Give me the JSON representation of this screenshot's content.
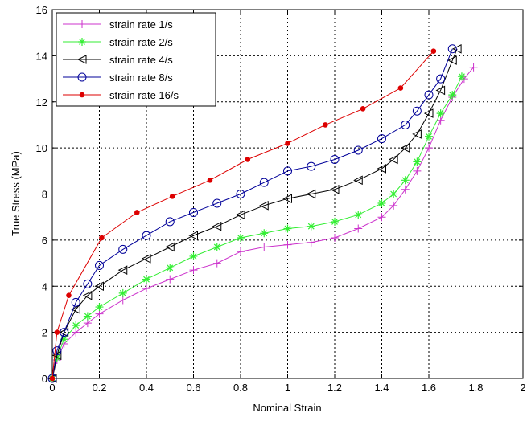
{
  "chart_data": {
    "type": "line",
    "title": "",
    "xlabel": "Nominal Strain",
    "ylabel": "True Stress (MPa)",
    "xlim": [
      0,
      2
    ],
    "ylim": [
      0,
      16
    ],
    "x_ticks": [
      "0",
      "0.2",
      "0.4",
      "0.6",
      "0.8",
      "1",
      "1.2",
      "1.4",
      "1.6",
      "1.8",
      "2"
    ],
    "y_ticks": [
      "0",
      "2",
      "4",
      "6",
      "8",
      "10",
      "12",
      "14",
      "16"
    ],
    "grid": true,
    "legend_position": "top-left",
    "series": [
      {
        "name": "strain rate 1/s",
        "color": "#cc33cc",
        "marker": "plus",
        "points": [
          [
            0,
            0
          ],
          [
            0.02,
            0.8
          ],
          [
            0.05,
            1.5
          ],
          [
            0.1,
            2.0
          ],
          [
            0.15,
            2.4
          ],
          [
            0.2,
            2.8
          ],
          [
            0.3,
            3.4
          ],
          [
            0.4,
            3.9
          ],
          [
            0.5,
            4.3
          ],
          [
            0.6,
            4.7
          ],
          [
            0.7,
            5.0
          ],
          [
            0.8,
            5.5
          ],
          [
            0.9,
            5.7
          ],
          [
            1.0,
            5.8
          ],
          [
            1.1,
            5.9
          ],
          [
            1.2,
            6.1
          ],
          [
            1.3,
            6.5
          ],
          [
            1.4,
            7.0
          ],
          [
            1.45,
            7.5
          ],
          [
            1.5,
            8.2
          ],
          [
            1.55,
            9.0
          ],
          [
            1.6,
            10.0
          ],
          [
            1.65,
            11.2
          ],
          [
            1.7,
            12.2
          ],
          [
            1.75,
            13.0
          ],
          [
            1.79,
            13.5
          ]
        ]
      },
      {
        "name": "strain rate 2/s",
        "color": "#33ee33",
        "marker": "star",
        "points": [
          [
            0,
            0
          ],
          [
            0.02,
            0.9
          ],
          [
            0.05,
            1.7
          ],
          [
            0.1,
            2.3
          ],
          [
            0.15,
            2.7
          ],
          [
            0.2,
            3.1
          ],
          [
            0.3,
            3.7
          ],
          [
            0.4,
            4.3
          ],
          [
            0.5,
            4.8
          ],
          [
            0.6,
            5.3
          ],
          [
            0.7,
            5.7
          ],
          [
            0.8,
            6.1
          ],
          [
            0.9,
            6.3
          ],
          [
            1.0,
            6.5
          ],
          [
            1.1,
            6.6
          ],
          [
            1.2,
            6.8
          ],
          [
            1.3,
            7.1
          ],
          [
            1.4,
            7.6
          ],
          [
            1.45,
            8.0
          ],
          [
            1.5,
            8.6
          ],
          [
            1.55,
            9.4
          ],
          [
            1.6,
            10.5
          ],
          [
            1.65,
            11.5
          ],
          [
            1.7,
            12.3
          ],
          [
            1.74,
            13.1
          ]
        ]
      },
      {
        "name": "strain rate 4/s",
        "color": "#000000",
        "marker": "triangle-left",
        "points": [
          [
            0,
            0
          ],
          [
            0.02,
            1.0
          ],
          [
            0.05,
            2.0
          ],
          [
            0.1,
            3.0
          ],
          [
            0.15,
            3.6
          ],
          [
            0.2,
            4.0
          ],
          [
            0.3,
            4.7
          ],
          [
            0.4,
            5.2
          ],
          [
            0.5,
            5.7
          ],
          [
            0.6,
            6.2
          ],
          [
            0.7,
            6.6
          ],
          [
            0.8,
            7.1
          ],
          [
            0.9,
            7.5
          ],
          [
            1.0,
            7.8
          ],
          [
            1.1,
            8.0
          ],
          [
            1.2,
            8.2
          ],
          [
            1.3,
            8.6
          ],
          [
            1.4,
            9.1
          ],
          [
            1.45,
            9.5
          ],
          [
            1.5,
            10.0
          ],
          [
            1.55,
            10.6
          ],
          [
            1.6,
            11.5
          ],
          [
            1.65,
            12.5
          ],
          [
            1.7,
            13.8
          ],
          [
            1.72,
            14.3
          ]
        ]
      },
      {
        "name": "strain rate 8/s",
        "color": "#000099",
        "marker": "circle",
        "points": [
          [
            0,
            0
          ],
          [
            0.02,
            1.2
          ],
          [
            0.05,
            2.0
          ],
          [
            0.1,
            3.3
          ],
          [
            0.15,
            4.1
          ],
          [
            0.2,
            4.9
          ],
          [
            0.3,
            5.6
          ],
          [
            0.4,
            6.2
          ],
          [
            0.5,
            6.8
          ],
          [
            0.6,
            7.2
          ],
          [
            0.7,
            7.6
          ],
          [
            0.8,
            8.0
          ],
          [
            0.9,
            8.5
          ],
          [
            1.0,
            9.0
          ],
          [
            1.1,
            9.2
          ],
          [
            1.2,
            9.5
          ],
          [
            1.3,
            9.9
          ],
          [
            1.4,
            10.4
          ],
          [
            1.5,
            11.0
          ],
          [
            1.55,
            11.6
          ],
          [
            1.6,
            12.3
          ],
          [
            1.65,
            13.0
          ],
          [
            1.7,
            14.3
          ]
        ]
      },
      {
        "name": "strain rate 16/s",
        "color": "#dd0000",
        "marker": "dot",
        "points": [
          [
            0,
            0
          ],
          [
            0.02,
            2.0
          ],
          [
            0.07,
            3.6
          ],
          [
            0.21,
            6.1
          ],
          [
            0.36,
            7.2
          ],
          [
            0.51,
            7.9
          ],
          [
            0.67,
            8.6
          ],
          [
            0.83,
            9.5
          ],
          [
            1.0,
            10.2
          ],
          [
            1.16,
            11.0
          ],
          [
            1.32,
            11.7
          ],
          [
            1.48,
            12.6
          ],
          [
            1.62,
            14.2
          ]
        ]
      }
    ]
  }
}
